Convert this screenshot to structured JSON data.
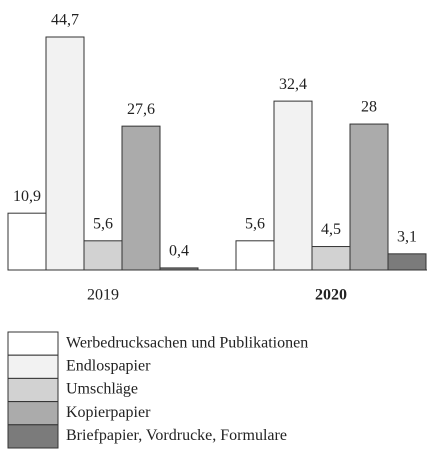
{
  "chart_data": {
    "type": "bar",
    "categories": [
      "2019",
      "2020"
    ],
    "category_bold": [
      false,
      true
    ],
    "series": [
      {
        "name": "Werbedrucksachen und Publikationen",
        "color": "#ffffff",
        "values": [
          10.9,
          5.6
        ],
        "value_labels": [
          "10,9",
          "5,6"
        ]
      },
      {
        "name": "Endlospapier",
        "color": "#f2f2f2",
        "values": [
          44.7,
          32.4
        ],
        "value_labels": [
          "44,7",
          "32,4"
        ]
      },
      {
        "name": "Umschläge",
        "color": "#d2d2d2",
        "values": [
          5.6,
          4.5
        ],
        "value_labels": [
          "5,6",
          "4,5"
        ]
      },
      {
        "name": "Kopierpapier",
        "color": "#ababab",
        "values": [
          27.6,
          28
        ],
        "value_labels": [
          "27,6",
          "28"
        ]
      },
      {
        "name": "Briefpapier, Vordrucke, Formulare",
        "color": "#7b7b7b",
        "values": [
          0.4,
          3.1
        ],
        "value_labels": [
          "0,4",
          "3,1"
        ]
      }
    ]
  }
}
